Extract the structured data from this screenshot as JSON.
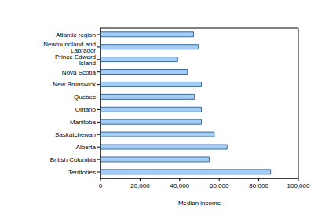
{
  "chart_data": {
    "type": "bar",
    "orientation": "horizontal",
    "categories": [
      "Atlantic region",
      "Newfoundland and Labrador",
      "Prince Edward Island",
      "Nova Scotia",
      "New Brunswick",
      "Quebec",
      "Ontario",
      "Manitoba",
      "Saskatchewan",
      "Alberta",
      "British Columbia",
      "Territories"
    ],
    "values": [
      47000,
      49500,
      39000,
      44000,
      51000,
      47500,
      51000,
      51000,
      57500,
      64000,
      55000,
      86000
    ],
    "color": "#a3cdf7",
    "x_label": "Median income",
    "xlim": [
      0,
      100000
    ],
    "xticks": [
      {
        "value": 0,
        "label": "0"
      },
      {
        "value": 20000,
        "label": "20,000"
      },
      {
        "value": 40000,
        "label": "40,000"
      },
      {
        "value": 60000,
        "label": "60,000"
      },
      {
        "value": 80000,
        "label": "80,000"
      },
      {
        "value": 100000,
        "label": "100,000"
      }
    ],
    "grid": false
  }
}
